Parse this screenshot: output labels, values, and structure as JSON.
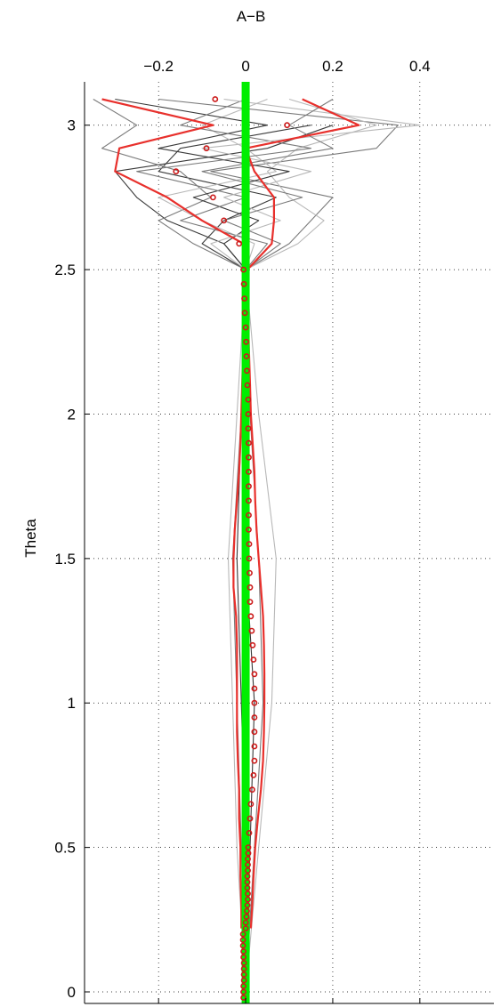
{
  "chart_data": {
    "type": "line",
    "title": "",
    "xlabel": "A−B",
    "ylabel": "Theta",
    "xaxis_position": "top",
    "xlim": [
      -0.37,
      0.57
    ],
    "ylim": [
      -0.04,
      3.15
    ],
    "x_ticks": [
      {
        "value": -0.2,
        "label": "−0.2"
      },
      {
        "value": 0,
        "label": "0"
      },
      {
        "value": 0.2,
        "label": "0.2"
      },
      {
        "value": 0.4,
        "label": "0.4"
      }
    ],
    "y_ticks": [
      {
        "value": 0,
        "label": "0"
      },
      {
        "value": 0.5,
        "label": "0.5"
      },
      {
        "value": 1,
        "label": "1"
      },
      {
        "value": 1.5,
        "label": "1.5"
      },
      {
        "value": 2,
        "label": "2"
      },
      {
        "value": 2.5,
        "label": "2.5"
      },
      {
        "value": 3,
        "label": "3"
      }
    ],
    "grid": "dotted",
    "colors": {
      "zero_line": "#00ee00",
      "envelope": "#e8302c",
      "mean_markers": "#cc1a1a",
      "dark_gray": "#3a3a3a",
      "mid_gray": "#7a7a7a",
      "light_gray": "#b8b8b8"
    },
    "zero_line": {
      "x": 0
    },
    "mean_points": [
      [
        -0.005,
        -0.02
      ],
      [
        -0.005,
        0.0
      ],
      [
        -0.005,
        0.02
      ],
      [
        -0.004,
        0.04
      ],
      [
        -0.004,
        0.06
      ],
      [
        -0.004,
        0.08
      ],
      [
        -0.004,
        0.1
      ],
      [
        -0.005,
        0.12
      ],
      [
        -0.005,
        0.14
      ],
      [
        -0.006,
        0.16
      ],
      [
        -0.006,
        0.18
      ],
      [
        -0.006,
        0.2
      ],
      [
        0.0,
        0.22
      ],
      [
        0.0,
        0.24
      ],
      [
        0.002,
        0.26
      ],
      [
        0.003,
        0.28
      ],
      [
        0.004,
        0.3
      ],
      [
        0.005,
        0.32
      ],
      [
        0.005,
        0.34
      ],
      [
        0.004,
        0.36
      ],
      [
        0.004,
        0.38
      ],
      [
        0.004,
        0.4
      ],
      [
        0.005,
        0.42
      ],
      [
        0.005,
        0.44
      ],
      [
        0.005,
        0.46
      ],
      [
        0.006,
        0.48
      ],
      [
        0.006,
        0.5
      ],
      [
        0.008,
        0.55
      ],
      [
        0.01,
        0.6
      ],
      [
        0.012,
        0.65
      ],
      [
        0.015,
        0.7
      ],
      [
        0.018,
        0.75
      ],
      [
        0.02,
        0.8
      ],
      [
        0.02,
        0.85
      ],
      [
        0.02,
        0.9
      ],
      [
        0.02,
        0.95
      ],
      [
        0.02,
        1.0
      ],
      [
        0.02,
        1.05
      ],
      [
        0.02,
        1.1
      ],
      [
        0.018,
        1.15
      ],
      [
        0.016,
        1.2
      ],
      [
        0.014,
        1.25
      ],
      [
        0.012,
        1.3
      ],
      [
        0.01,
        1.35
      ],
      [
        0.01,
        1.4
      ],
      [
        0.009,
        1.45
      ],
      [
        0.008,
        1.5
      ],
      [
        0.008,
        1.55
      ],
      [
        0.007,
        1.6
      ],
      [
        0.007,
        1.65
      ],
      [
        0.007,
        1.7
      ],
      [
        0.007,
        1.75
      ],
      [
        0.007,
        1.8
      ],
      [
        0.007,
        1.85
      ],
      [
        0.007,
        1.9
      ],
      [
        0.006,
        1.95
      ],
      [
        0.006,
        2.0
      ],
      [
        0.006,
        2.05
      ],
      [
        0.004,
        2.1
      ],
      [
        0.003,
        2.15
      ],
      [
        0.002,
        2.2
      ],
      [
        0.001,
        2.25
      ],
      [
        0.0,
        2.3
      ],
      [
        -0.002,
        2.35
      ],
      [
        -0.003,
        2.4
      ],
      [
        -0.004,
        2.45
      ],
      [
        -0.005,
        2.5
      ],
      [
        -0.015,
        2.59
      ],
      [
        -0.05,
        2.67
      ],
      [
        -0.075,
        2.75
      ],
      [
        -0.16,
        2.84
      ],
      [
        -0.09,
        2.92
      ],
      [
        0.095,
        3.0
      ],
      [
        -0.07,
        3.09
      ]
    ],
    "envelope_lower": [
      [
        -0.01,
        0.22
      ],
      [
        -0.01,
        0.3
      ],
      [
        -0.012,
        0.4
      ],
      [
        -0.012,
        0.5
      ],
      [
        -0.015,
        0.6
      ],
      [
        -0.015,
        0.7
      ],
      [
        -0.018,
        0.8
      ],
      [
        -0.02,
        0.9
      ],
      [
        -0.02,
        1.0
      ],
      [
        -0.02,
        1.1
      ],
      [
        -0.02,
        1.2
      ],
      [
        -0.022,
        1.3
      ],
      [
        -0.025,
        1.35
      ],
      [
        -0.028,
        1.4
      ],
      [
        -0.028,
        1.5
      ],
      [
        -0.025,
        1.6
      ],
      [
        -0.02,
        1.7
      ],
      [
        -0.015,
        1.8
      ],
      [
        -0.012,
        1.9
      ],
      [
        -0.01,
        2.0
      ],
      [
        -0.008,
        2.1
      ],
      [
        -0.006,
        2.2
      ],
      [
        -0.006,
        2.3
      ],
      [
        -0.004,
        2.4
      ],
      [
        -0.004,
        2.5
      ],
      [
        -0.005,
        2.59
      ],
      [
        -0.1,
        2.67
      ],
      [
        -0.18,
        2.75
      ],
      [
        -0.3,
        2.84
      ],
      [
        -0.29,
        2.92
      ],
      [
        -0.075,
        3.0
      ],
      [
        -0.33,
        3.09
      ]
    ],
    "envelope_upper": [
      [
        0.012,
        0.22
      ],
      [
        0.015,
        0.3
      ],
      [
        0.018,
        0.4
      ],
      [
        0.022,
        0.5
      ],
      [
        0.028,
        0.6
      ],
      [
        0.035,
        0.7
      ],
      [
        0.04,
        0.8
      ],
      [
        0.042,
        0.9
      ],
      [
        0.043,
        1.0
      ],
      [
        0.043,
        1.1
      ],
      [
        0.042,
        1.2
      ],
      [
        0.04,
        1.3
      ],
      [
        0.035,
        1.4
      ],
      [
        0.03,
        1.5
      ],
      [
        0.025,
        1.6
      ],
      [
        0.022,
        1.7
      ],
      [
        0.02,
        1.8
      ],
      [
        0.016,
        1.9
      ],
      [
        0.012,
        2.0
      ],
      [
        0.01,
        2.1
      ],
      [
        0.008,
        2.2
      ],
      [
        0.006,
        2.3
      ],
      [
        0.005,
        2.4
      ],
      [
        0.004,
        2.5
      ],
      [
        0.06,
        2.59
      ],
      [
        0.065,
        2.67
      ],
      [
        0.065,
        2.75
      ],
      [
        0.02,
        2.84
      ],
      [
        0.0,
        2.92
      ],
      [
        0.26,
        3.0
      ],
      [
        0.13,
        3.09
      ]
    ],
    "sample_curves": [
      {
        "tone": "dark_gray",
        "points": [
          [
            0.0,
            0.0
          ],
          [
            0.0,
            0.5
          ],
          [
            -0.01,
            1.0
          ],
          [
            -0.02,
            1.5
          ],
          [
            -0.01,
            2.0
          ],
          [
            0.0,
            2.5
          ],
          [
            -0.05,
            2.59
          ],
          [
            -0.18,
            2.67
          ],
          [
            -0.25,
            2.75
          ],
          [
            -0.3,
            2.84
          ],
          [
            0.05,
            2.92
          ],
          [
            0.2,
            3.0
          ]
        ]
      },
      {
        "tone": "dark_gray",
        "points": [
          [
            0.0,
            0.0
          ],
          [
            0.01,
            0.5
          ],
          [
            0.02,
            1.0
          ],
          [
            0.0,
            1.5
          ],
          [
            0.0,
            2.0
          ],
          [
            0.0,
            2.5
          ],
          [
            -0.1,
            2.59
          ],
          [
            -0.05,
            2.67
          ],
          [
            0.07,
            2.75
          ],
          [
            -0.2,
            2.84
          ],
          [
            -0.15,
            2.92
          ],
          [
            0.15,
            3.0
          ]
        ]
      },
      {
        "tone": "mid_gray",
        "points": [
          [
            0.0,
            0.0
          ],
          [
            0.02,
            0.5
          ],
          [
            0.04,
            1.0
          ],
          [
            0.03,
            1.5
          ],
          [
            0.01,
            2.0
          ],
          [
            0.0,
            2.5
          ],
          [
            0.1,
            2.59
          ],
          [
            0.15,
            2.67
          ],
          [
            0.2,
            2.75
          ],
          [
            -0.08,
            2.84
          ],
          [
            0.3,
            2.92
          ],
          [
            0.35,
            3.0
          ],
          [
            -0.2,
            3.09
          ]
        ]
      },
      {
        "tone": "mid_gray",
        "points": [
          [
            0.0,
            0.0
          ],
          [
            -0.01,
            0.5
          ],
          [
            -0.02,
            1.0
          ],
          [
            -0.03,
            1.5
          ],
          [
            -0.01,
            2.0
          ],
          [
            0.0,
            2.5
          ],
          [
            -0.12,
            2.59
          ],
          [
            -0.2,
            2.67
          ],
          [
            -0.08,
            2.75
          ],
          [
            -0.15,
            2.84
          ],
          [
            -0.33,
            2.92
          ],
          [
            -0.25,
            3.0
          ],
          [
            -0.35,
            3.09
          ]
        ]
      },
      {
        "tone": "light_gray",
        "points": [
          [
            0.0,
            0.0
          ],
          [
            0.03,
            0.5
          ],
          [
            0.06,
            1.0
          ],
          [
            0.07,
            1.5
          ],
          [
            0.03,
            2.0
          ],
          [
            0.0,
            2.5
          ],
          [
            0.12,
            2.59
          ],
          [
            0.18,
            2.67
          ],
          [
            0.1,
            2.75
          ],
          [
            0.05,
            2.84
          ],
          [
            0.12,
            2.92
          ],
          [
            0.3,
            3.0
          ],
          [
            0.1,
            3.09
          ]
        ]
      },
      {
        "tone": "light_gray",
        "points": [
          [
            0.0,
            0.0
          ],
          [
            -0.02,
            0.5
          ],
          [
            -0.03,
            1.0
          ],
          [
            -0.04,
            1.5
          ],
          [
            -0.02,
            2.0
          ],
          [
            0.0,
            2.5
          ],
          [
            0.02,
            2.59
          ],
          [
            -0.1,
            2.67
          ],
          [
            -0.2,
            2.75
          ],
          [
            0.07,
            2.84
          ],
          [
            0.0,
            2.92
          ],
          [
            -0.1,
            3.0
          ],
          [
            0.05,
            3.09
          ]
        ]
      },
      {
        "tone": "dark_gray",
        "points": [
          [
            0.0,
            2.5
          ],
          [
            -0.05,
            2.59
          ],
          [
            0.03,
            2.67
          ],
          [
            -0.12,
            2.75
          ],
          [
            0.1,
            2.84
          ],
          [
            -0.2,
            2.92
          ],
          [
            0.05,
            3.0
          ],
          [
            -0.3,
            3.09
          ]
        ]
      },
      {
        "tone": "mid_gray",
        "points": [
          [
            0.0,
            2.5
          ],
          [
            0.05,
            2.59
          ],
          [
            -0.15,
            2.67
          ],
          [
            0.0,
            2.75
          ],
          [
            -0.25,
            2.84
          ],
          [
            0.15,
            2.92
          ],
          [
            -0.15,
            3.0
          ],
          [
            0.0,
            3.09
          ]
        ]
      },
      {
        "tone": "light_gray",
        "points": [
          [
            0.0,
            2.5
          ],
          [
            -0.08,
            2.59
          ],
          [
            0.08,
            2.67
          ],
          [
            -0.05,
            2.75
          ],
          [
            0.15,
            2.84
          ],
          [
            -0.1,
            2.92
          ],
          [
            0.4,
            3.0
          ],
          [
            -0.05,
            3.09
          ]
        ]
      },
      {
        "tone": "mid_gray",
        "points": [
          [
            0.0,
            2.5
          ],
          [
            0.08,
            2.59
          ],
          [
            -0.05,
            2.67
          ],
          [
            0.13,
            2.75
          ],
          [
            -0.1,
            2.84
          ],
          [
            0.2,
            2.92
          ],
          [
            0.1,
            3.0
          ],
          [
            0.2,
            3.09
          ]
        ]
      }
    ]
  }
}
